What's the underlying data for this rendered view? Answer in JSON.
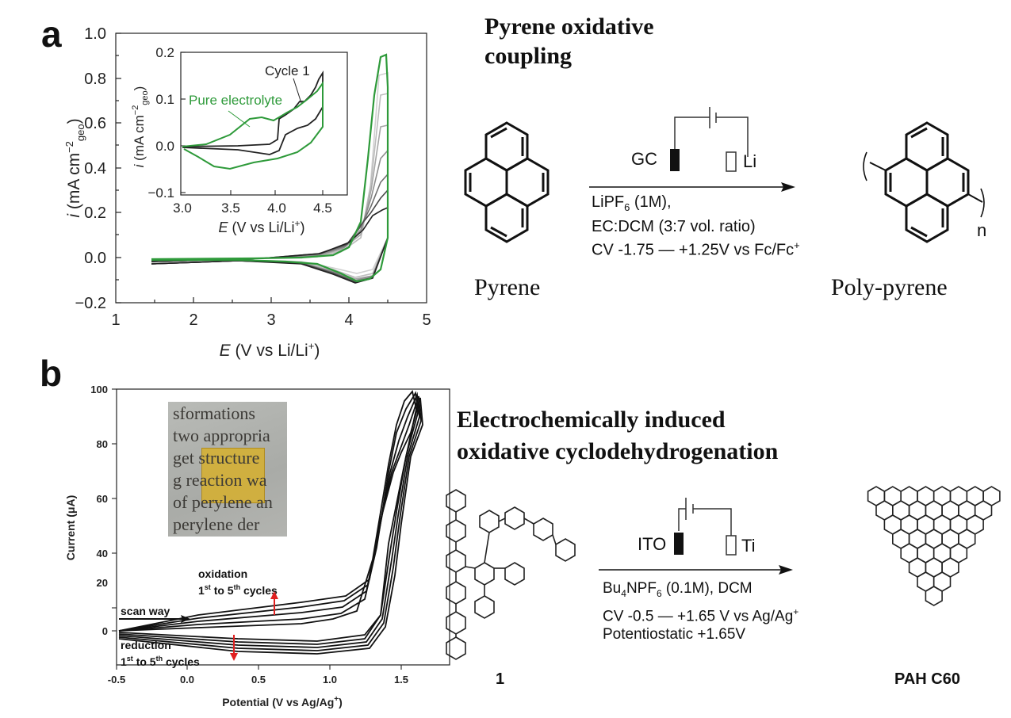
{
  "panel_a": {
    "letter": "a",
    "main_chart": {
      "x_label_var": "E",
      "x_label_rest": "(V vs Li/Li",
      "x_label_sup": "+",
      "x_label_end": ")",
      "y_label_var": "i",
      "y_label_rest": "(mA cm",
      "y_label_sup": "−2",
      "y_label_sub": "geo",
      "y_label_end": ")",
      "x_ticks": [
        "1",
        "2",
        "3",
        "4",
        "5"
      ],
      "y_ticks": [
        "1.0",
        "0.8",
        "0.6",
        "0.4",
        "0.2",
        "0.0",
        "−0.2"
      ]
    },
    "inset_chart": {
      "x_ticks": [
        "3.0",
        "3.5",
        "4.0",
        "4.5"
      ],
      "y_ticks": [
        "0.2",
        "0.1",
        "0.0",
        "−0.1"
      ],
      "x_label_var": "E",
      "x_label_rest": "(V vs Li/Li",
      "x_label_sup": "+",
      "x_label_end": ")",
      "y_label_var": "i",
      "y_label_rest": "(mA cm",
      "y_label_sup": "−2",
      "y_label_sub": "geo",
      "y_label_end": ")",
      "annotation_cycle": "Cycle 1",
      "annotation_electrolyte": "Pure electrolyte"
    },
    "scheme": {
      "title_line1": "Pyrene oxidative",
      "title_line2": "coupling",
      "electrode_left": "GC",
      "electrode_right": "Li",
      "cond_line1_pre": "LiPF",
      "cond_line1_sub": "6",
      "cond_line1_post": " (1M),",
      "cond_line2": "EC:DCM (3:7 vol. ratio)",
      "cond_line3_pre": "CV -1.75 — +1.25V vs Fc/Fc",
      "cond_line3_sup": "+",
      "reactant_label": "Pyrene",
      "product_label": "Poly-pyrene",
      "product_subscript": "n"
    }
  },
  "panel_b": {
    "letter": "b",
    "chart": {
      "x_label_pre": "Potential (V vs Ag/Ag",
      "x_label_sup": "+",
      "x_label_end": ")",
      "y_label": "Current (μA)",
      "x_ticks": [
        "-0.5",
        "0.0",
        "0.5",
        "1.0",
        "1.5"
      ],
      "y_ticks": [
        "100",
        "80",
        "60",
        "40",
        "20",
        "0"
      ],
      "oxidation_line1": "oxidation",
      "oxidation_line2_a": "1",
      "oxidation_line2_sup": "st",
      "oxidation_line2_b": " to 5",
      "oxidation_line2_sup2": "th",
      "oxidation_line2_c": " cycles",
      "scan_way": "scan way",
      "reduction_line1": "reduction",
      "reduction_line2_a": "1",
      "reduction_line2_sup": "st",
      "reduction_line2_b": " to 5",
      "reduction_line2_sup2": "th",
      "reduction_line2_c": " cycles",
      "photo_lines": [
        "sformations",
        "two appropria",
        "get  structure",
        "g reaction wa",
        "of perylene an",
        "perylene  der"
      ]
    },
    "scheme": {
      "title_line1": "Electrochemically induced",
      "title_line2": "oxidative cyclodehydrogenation",
      "electrode_left": "ITO",
      "electrode_right": "Ti",
      "cond_line1_pre": "Bu",
      "cond_line1_sub": "4",
      "cond_line1_mid": "NPF",
      "cond_line1_sub2": "6",
      "cond_line1_post": " (0.1M), DCM",
      "cond_line2_pre": "CV -0.5 — +1.65 V vs Ag/Ag",
      "cond_line2_sup": "+",
      "cond_line3": "Potentiostatic +1.65V",
      "reactant_label": "1",
      "product_label": "PAH C60"
    }
  },
  "colors": {
    "green": "#2e9a3a",
    "red_arrow": "#e02020",
    "ink": "#111111"
  }
}
